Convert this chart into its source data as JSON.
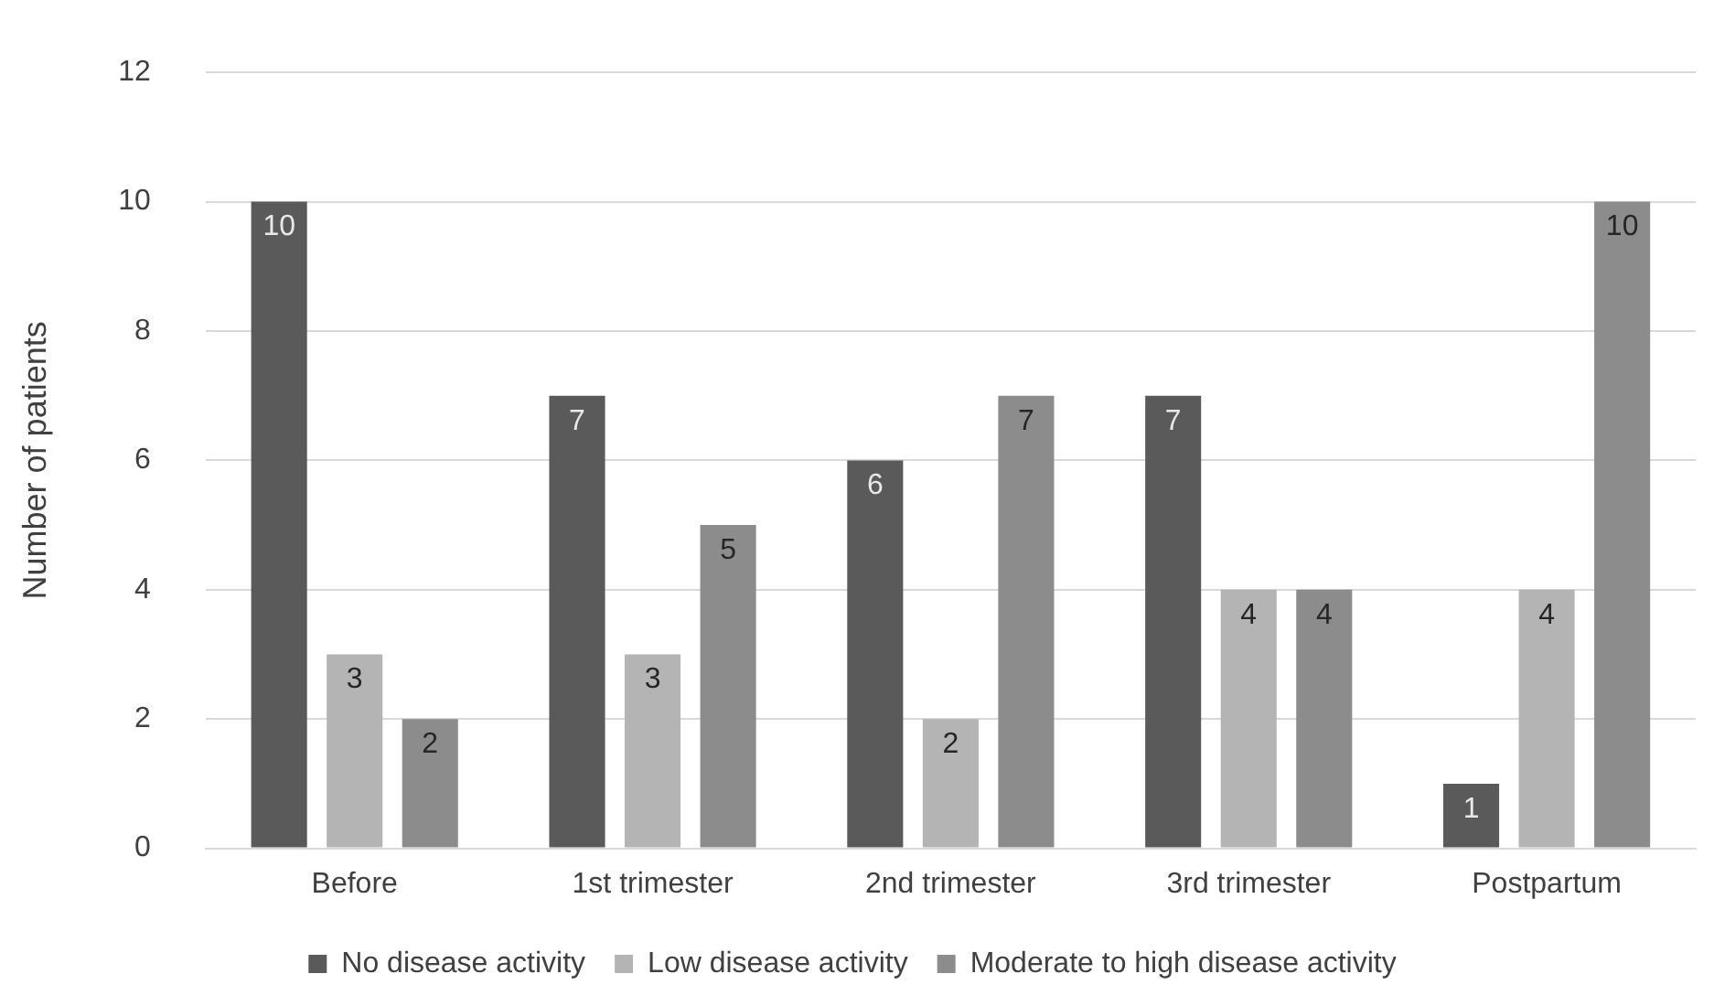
{
  "chart_data": {
    "type": "bar",
    "ylabel": "Number of patients",
    "categories": [
      "Before",
      "1st trimester",
      "2nd trimester",
      "3rd trimester",
      "Postpartum"
    ],
    "series": [
      {
        "name": "No disease activity",
        "color": "#5a5a5a",
        "values": [
          10,
          7,
          6,
          7,
          1
        ]
      },
      {
        "name": "Low disease activity",
        "color": "#b4b4b4",
        "values": [
          3,
          3,
          2,
          4,
          4
        ]
      },
      {
        "name": "Moderate to high disease activity",
        "color": "#8c8c8c",
        "values": [
          2,
          5,
          7,
          4,
          10
        ]
      }
    ],
    "ylim": [
      0,
      12
    ],
    "yticks": [
      0,
      2,
      4,
      6,
      8,
      10,
      12
    ],
    "grid": "y",
    "legend": "bottom",
    "data_labels": true
  }
}
